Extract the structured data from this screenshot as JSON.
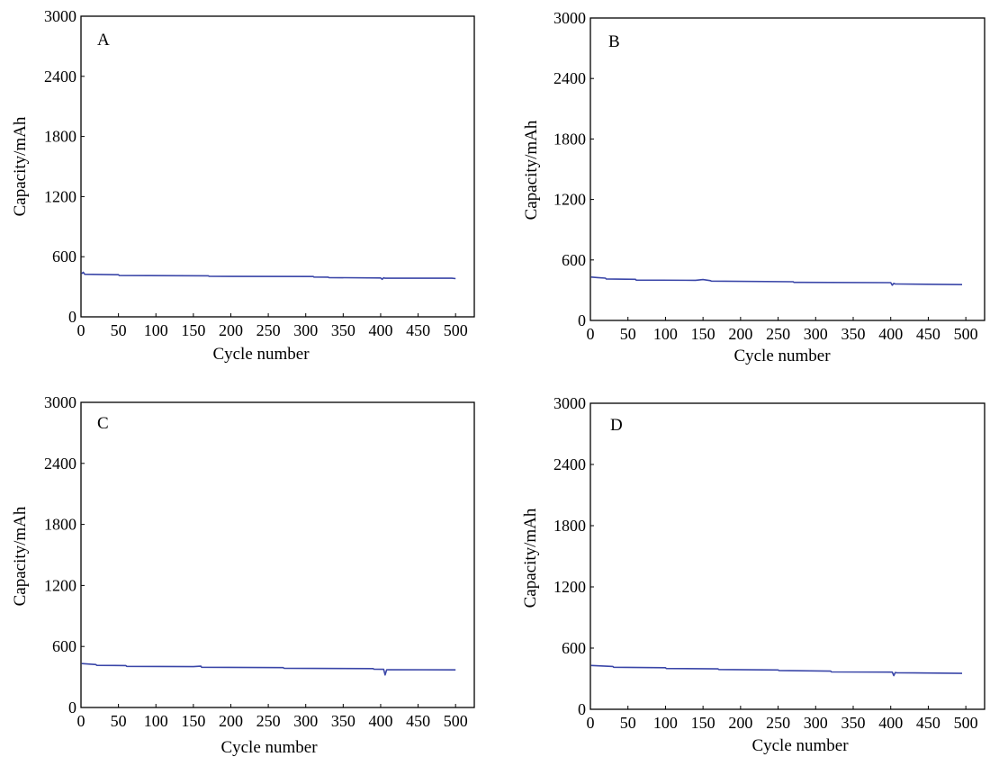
{
  "line_color": "#3a46a8",
  "chart_data": [
    {
      "type": "line",
      "panel_label": "A",
      "xlabel": "Cycle number",
      "ylabel": "Capacity/mAh",
      "xlim": [
        0,
        525
      ],
      "ylim": [
        0,
        3000
      ],
      "xticks": [
        0,
        50,
        100,
        150,
        200,
        250,
        300,
        350,
        400,
        450,
        500
      ],
      "yticks": [
        0,
        600,
        1200,
        1800,
        2400,
        3000
      ],
      "grid": false,
      "series": [
        {
          "x": [
            1,
            3,
            5,
            50,
            51,
            170,
            171,
            310,
            311,
            330,
            331,
            400,
            402,
            404,
            406,
            408,
            495,
            500
          ],
          "y": [
            430,
            445,
            425,
            420,
            412,
            410,
            404,
            402,
            397,
            396,
            392,
            388,
            375,
            390,
            385,
            386,
            385,
            382
          ]
        }
      ]
    },
    {
      "type": "line",
      "panel_label": "B",
      "xlabel": "Cycle number",
      "ylabel": "Capacity/mAh",
      "xlim": [
        0,
        525
      ],
      "ylim": [
        0,
        3000
      ],
      "xticks": [
        0,
        50,
        100,
        150,
        200,
        250,
        300,
        350,
        400,
        450,
        500
      ],
      "yticks": [
        0,
        600,
        1200,
        1800,
        2400,
        3000
      ],
      "grid": false,
      "series": [
        {
          "x": [
            1,
            10,
            20,
            21,
            60,
            61,
            140,
            150,
            160,
            161,
            270,
            271,
            400,
            402,
            404,
            406,
            408,
            495
          ],
          "y": [
            430,
            425,
            420,
            412,
            408,
            400,
            398,
            405,
            395,
            390,
            384,
            378,
            375,
            350,
            368,
            362,
            362,
            355
          ]
        }
      ]
    },
    {
      "type": "line",
      "panel_label": "C",
      "xlabel": "Cycle number",
      "ylabel": "Capacity/mAh",
      "xlim": [
        0,
        525
      ],
      "ylim": [
        0,
        3000
      ],
      "xticks": [
        0,
        50,
        100,
        150,
        200,
        250,
        300,
        350,
        400,
        450,
        500
      ],
      "yticks": [
        0,
        600,
        1200,
        1800,
        2400,
        3000
      ],
      "grid": false,
      "series": [
        {
          "x": [
            1,
            20,
            21,
            60,
            61,
            150,
            160,
            161,
            270,
            271,
            390,
            391,
            404,
            406,
            408,
            410,
            500
          ],
          "y": [
            432,
            422,
            414,
            412,
            404,
            402,
            406,
            396,
            392,
            386,
            382,
            376,
            375,
            320,
            370,
            372,
            370
          ]
        }
      ]
    },
    {
      "type": "line",
      "panel_label": "D",
      "xlabel": "Cycle number",
      "ylabel": "Capacity/mAh",
      "xlim": [
        0,
        525
      ],
      "ylim": [
        0,
        3000
      ],
      "xticks": [
        0,
        50,
        100,
        150,
        200,
        250,
        300,
        350,
        400,
        450,
        500
      ],
      "yticks": [
        0,
        600,
        1200,
        1800,
        2400,
        3000
      ],
      "grid": false,
      "series": [
        {
          "x": [
            1,
            30,
            31,
            100,
            101,
            170,
            171,
            250,
            251,
            320,
            321,
            402,
            404,
            406,
            408,
            495
          ],
          "y": [
            430,
            420,
            412,
            408,
            400,
            396,
            390,
            386,
            380,
            374,
            366,
            364,
            330,
            360,
            358,
            352
          ]
        }
      ]
    }
  ]
}
